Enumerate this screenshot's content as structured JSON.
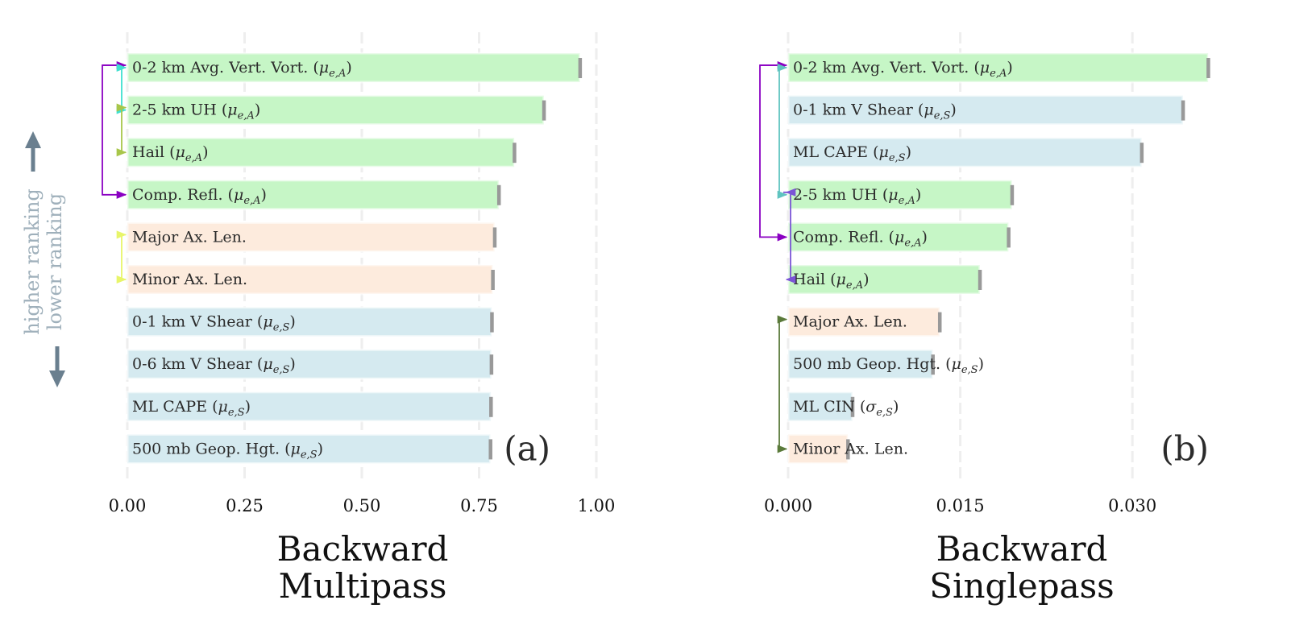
{
  "colors": {
    "automated": "#c6f6c6",
    "shape": "#fdebdd",
    "environment": "#d5eaf0",
    "error_tick": "#999999",
    "grid": "#eeeeee",
    "rank_arrow": "#6a7f8f"
  },
  "ranking": {
    "higher": "higher ranking",
    "lower": "lower ranking"
  },
  "chart_data": [
    {
      "type": "bar",
      "orientation": "horizontal",
      "panel_label": "(a)",
      "xlabel_lines": [
        "Backward",
        "Multipass"
      ],
      "xlim": [
        0,
        1.0
      ],
      "xticks": [
        0,
        0.25,
        0.5,
        0.75,
        1.0
      ],
      "xtick_labels": [
        "0.00",
        "0.25",
        "0.50",
        "0.75",
        "1.00"
      ],
      "grid": true,
      "bars": [
        {
          "label": "0-2 km Avg. Vert. Vort.",
          "sym": "μ",
          "sub": "e,A",
          "value": 0.965,
          "group": "automated"
        },
        {
          "label": "2-5 km UH",
          "sym": "μ",
          "sub": "e,A",
          "value": 0.888,
          "group": "automated"
        },
        {
          "label": "Hail",
          "sym": "μ",
          "sub": "e,A",
          "value": 0.825,
          "group": "automated"
        },
        {
          "label": "Comp. Refl.",
          "sym": "μ",
          "sub": "e,A",
          "value": 0.792,
          "group": "automated"
        },
        {
          "label": "Major Ax. Len.",
          "sym": "",
          "sub": "",
          "value": 0.783,
          "group": "shape"
        },
        {
          "label": "Minor Ax. Len.",
          "sym": "",
          "sub": "",
          "value": 0.779,
          "group": "shape"
        },
        {
          "label": "0-1 km V Shear",
          "sym": "μ",
          "sub": "e,S",
          "value": 0.777,
          "group": "environment"
        },
        {
          "label": "0-6 km V Shear",
          "sym": "μ",
          "sub": "e,S",
          "value": 0.776,
          "group": "environment"
        },
        {
          "label": "ML CAPE",
          "sym": "μ",
          "sub": "e,S",
          "value": 0.775,
          "group": "environment"
        },
        {
          "label": "500 mb Geop. Hgt.",
          "sym": "μ",
          "sub": "e,S",
          "value": 0.774,
          "group": "environment"
        }
      ],
      "brackets": [
        {
          "from": 0,
          "to": 3,
          "color": "#8a00c2"
        },
        {
          "from": 0,
          "to": 1,
          "color": "#40e0d0"
        },
        {
          "from": 1,
          "to": 2,
          "color": "#a8c64a"
        },
        {
          "from": 4,
          "to": 5,
          "color": "#e8f56a"
        }
      ]
    },
    {
      "type": "bar",
      "orientation": "horizontal",
      "panel_label": "(b)",
      "xlabel_lines": [
        "Backward",
        "Singlepass"
      ],
      "xlim": [
        0,
        0.0375
      ],
      "xticks": [
        0,
        0.015,
        0.03
      ],
      "xtick_labels": [
        "0.000",
        "0.015",
        "0.030"
      ],
      "grid": true,
      "bars": [
        {
          "label": "0-2 km Avg. Vert. Vort.",
          "sym": "μ",
          "sub": "e,A",
          "value": 0.0366,
          "group": "automated"
        },
        {
          "label": "0-1 km V Shear",
          "sym": "μ",
          "sub": "e,S",
          "value": 0.0344,
          "group": "environment"
        },
        {
          "label": "ML CAPE",
          "sym": "μ",
          "sub": "e,S",
          "value": 0.0308,
          "group": "environment"
        },
        {
          "label": "2-5 km UH",
          "sym": "μ",
          "sub": "e,A",
          "value": 0.0195,
          "group": "automated"
        },
        {
          "label": "Comp. Refl.",
          "sym": "μ",
          "sub": "e,A",
          "value": 0.0192,
          "group": "automated"
        },
        {
          "label": "Hail",
          "sym": "μ",
          "sub": "e,A",
          "value": 0.0167,
          "group": "automated"
        },
        {
          "label": "Major Ax. Len.",
          "sym": "",
          "sub": "",
          "value": 0.0132,
          "group": "shape"
        },
        {
          "label": "500 mb Geop. Hgt.",
          "sym": "μ",
          "sub": "e,S",
          "value": 0.0126,
          "group": "environment"
        },
        {
          "label": "ML CIN",
          "sym": "σ",
          "sub": "e,S",
          "value": 0.0056,
          "group": "environment"
        },
        {
          "label": "Minor Ax. Len.",
          "sym": "",
          "sub": "",
          "value": 0.0052,
          "group": "shape"
        }
      ],
      "brackets": [
        {
          "from": 0,
          "to": 4,
          "color": "#8a00c2"
        },
        {
          "from": 0,
          "to": 3,
          "color": "#5fc4c0"
        },
        {
          "from": 3,
          "to": 5,
          "color": "#7b55d6"
        },
        {
          "from": 6,
          "to": 9,
          "color": "#5a7a3a"
        }
      ]
    }
  ]
}
